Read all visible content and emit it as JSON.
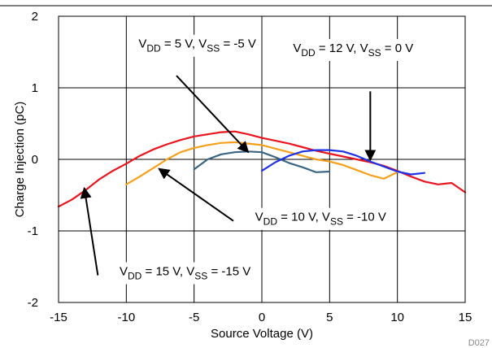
{
  "chart_data": {
    "type": "line",
    "xlabel": "Source Voltage (V)",
    "ylabel": "Charge Injection (pC)",
    "xlim": [
      -15,
      15
    ],
    "ylim": [
      -2,
      2
    ],
    "x_ticks": [
      -15,
      -10,
      -5,
      0,
      5,
      10,
      15
    ],
    "y_ticks": [
      -2,
      -1,
      0,
      1,
      2
    ],
    "grid": true,
    "figure_id": "D027",
    "series": [
      {
        "label": {
          "base1": "V",
          "sub1": "DD",
          "mid": " = 15 V, V",
          "sub2": "SS",
          "tail": " = -15 V"
        },
        "color": "#e8141e",
        "x": [
          -15,
          -14,
          -13,
          -12,
          -11,
          -10,
          -9,
          -8,
          -7,
          -6,
          -5,
          -4,
          -3,
          -2,
          -1,
          0,
          1,
          2,
          3,
          4,
          5,
          6,
          7,
          8,
          9,
          10,
          11,
          12,
          13,
          14,
          15
        ],
        "y": [
          -0.66,
          -0.56,
          -0.43,
          -0.28,
          -0.16,
          -0.06,
          0.05,
          0.14,
          0.21,
          0.27,
          0.32,
          0.35,
          0.38,
          0.39,
          0.35,
          0.3,
          0.26,
          0.22,
          0.17,
          0.12,
          0.08,
          0.04,
          0.0,
          -0.04,
          -0.09,
          -0.16,
          -0.24,
          -0.31,
          -0.35,
          -0.33,
          -0.46
        ]
      },
      {
        "label": {
          "base1": "V",
          "sub1": "DD",
          "mid": " = 10 V, V",
          "sub2": "SS",
          "tail": " = -10 V"
        },
        "color": "#f5a01c",
        "x": [
          -10,
          -9,
          -8,
          -7,
          -6,
          -5,
          -4,
          -3,
          -2,
          -1,
          0,
          1,
          2,
          3,
          4,
          5,
          6,
          7,
          8,
          9,
          10
        ],
        "y": [
          -0.35,
          -0.24,
          -0.12,
          0.0,
          0.1,
          0.16,
          0.2,
          0.23,
          0.24,
          0.22,
          0.2,
          0.15,
          0.1,
          0.05,
          0.0,
          -0.03,
          -0.08,
          -0.15,
          -0.22,
          -0.27,
          -0.18
        ]
      },
      {
        "label": {
          "base1": "V",
          "sub1": "DD",
          "mid": " = 5 V, V",
          "sub2": "SS",
          "tail": " = -5 V"
        },
        "color": "#3a6683",
        "x": [
          -5,
          -4,
          -3,
          -2,
          -1,
          0,
          1,
          2,
          3,
          4,
          5
        ],
        "y": [
          -0.14,
          0.0,
          0.07,
          0.1,
          0.11,
          0.1,
          0.03,
          -0.05,
          -0.11,
          -0.18,
          -0.17
        ]
      },
      {
        "label": {
          "base1": "V",
          "sub1": "DD",
          "mid": " = 12 V, V",
          "sub2": "SS",
          "tail": " = 0 V"
        },
        "color": "#1e32e6",
        "x": [
          0,
          1,
          2,
          3,
          4,
          5,
          6,
          7,
          8,
          9,
          10,
          11,
          12
        ],
        "y": [
          -0.16,
          -0.04,
          0.05,
          0.11,
          0.13,
          0.13,
          0.11,
          0.05,
          -0.03,
          -0.1,
          -0.17,
          -0.21,
          -0.19
        ]
      }
    ],
    "annotations": [
      {
        "series_index": 2,
        "text_at": [
          -9.1,
          1.56
        ],
        "start": [
          -6.3,
          1.17
        ],
        "point": [
          -1.0,
          0.1
        ]
      },
      {
        "series_index": 3,
        "text_at": [
          2.3,
          1.5
        ],
        "start": [
          8.0,
          0.95
        ],
        "point": [
          8.0,
          -0.01
        ]
      },
      {
        "series_index": 1,
        "text_at": [
          -0.5,
          -0.86
        ],
        "start": [
          -2.1,
          -0.86
        ],
        "point": [
          -7.6,
          -0.13
        ]
      },
      {
        "series_index": 0,
        "text_at": [
          -10.5,
          -1.62
        ],
        "start": [
          -12.1,
          -1.62
        ],
        "point": [
          -13.1,
          -0.4
        ]
      }
    ]
  }
}
